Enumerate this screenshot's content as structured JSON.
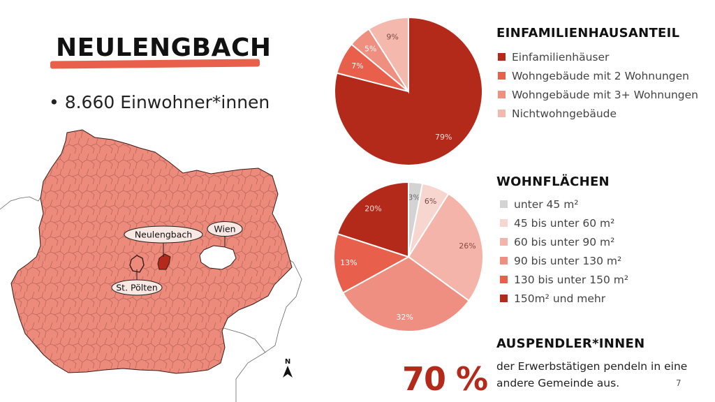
{
  "title": "NEULENGBACH",
  "population_bullet": "8.660 Einwohner*innen",
  "map": {
    "labels": {
      "neulengbach": "Neulengbach",
      "wien": "Wien",
      "st_poelten": "St. Pölten"
    },
    "north_label": "N"
  },
  "section1": {
    "title": "EINFAMILIENHAUSANTEIL",
    "legend": [
      {
        "label": "Einfamilienhäuser",
        "color": "#b32a1b"
      },
      {
        "label": "Wohngebäude mit 2 Wohnungen",
        "color": "#e8604c"
      },
      {
        "label": "Wohngebäude mit 3+ Wohnungen",
        "color": "#ef8f80"
      },
      {
        "label": "Nichtwohngebäude",
        "color": "#f5b8ad"
      }
    ]
  },
  "section2": {
    "title": "WOHNFLÄCHEN",
    "legend": [
      {
        "label": "unter 45 m²",
        "color": "#d3d3d3"
      },
      {
        "label": "45 bis unter 60 m²",
        "color": "#f8d6d0"
      },
      {
        "label": "60 bis unter 90 m²",
        "color": "#f4b4aa"
      },
      {
        "label": "90 bis unter 130 m²",
        "color": "#ee8f81"
      },
      {
        "label": "130 bis unter 150 m²",
        "color": "#e8604c"
      },
      {
        "label": "150m² und mehr",
        "color": "#b32a1b"
      }
    ]
  },
  "section3": {
    "title": "AUSPENDLER*INNEN",
    "big_value": "70 %",
    "text": "der Erwerbstätigen pendeln in eine andere Gemeinde aus."
  },
  "page_number": "7",
  "chart_data": [
    {
      "type": "pie",
      "title": "EINFAMILIENHAUSANTEIL",
      "categories": [
        "Einfamilienhäuser",
        "Wohngebäude mit 2 Wohnungen",
        "Wohngebäude mit 3+ Wohnungen",
        "Nichtwohngebäude"
      ],
      "values": [
        79,
        7,
        5,
        9
      ],
      "labels": [
        "79%",
        "7%",
        "5%",
        "9%"
      ],
      "colors": [
        "#b32a1b",
        "#e8604c",
        "#ef8f80",
        "#f5b8ad"
      ],
      "label_colors": [
        "#f6ddd8",
        "#ffffff",
        "#ffffff",
        "#7a4a44"
      ],
      "legend": "right"
    },
    {
      "type": "pie",
      "title": "WOHNFLÄCHEN",
      "categories": [
        "unter 45 m²",
        "45 bis unter 60 m²",
        "60 bis unter 90 m²",
        "90 bis unter 130 m²",
        "130 bis unter 150 m²",
        "150m² und mehr"
      ],
      "values": [
        3,
        6,
        26,
        32,
        13,
        20
      ],
      "labels": [
        "3%",
        "6%",
        "26%",
        "32%",
        "13%",
        "20%"
      ],
      "colors": [
        "#d3d3d3",
        "#f8d6d0",
        "#f4b4aa",
        "#ee8f81",
        "#e8604c",
        "#b32a1b"
      ],
      "label_colors": [
        "#6a6a6a",
        "#7a4a44",
        "#8a4a42",
        "#ffffff",
        "#ffffff",
        "#f6ddd8"
      ],
      "legend": "right"
    }
  ]
}
